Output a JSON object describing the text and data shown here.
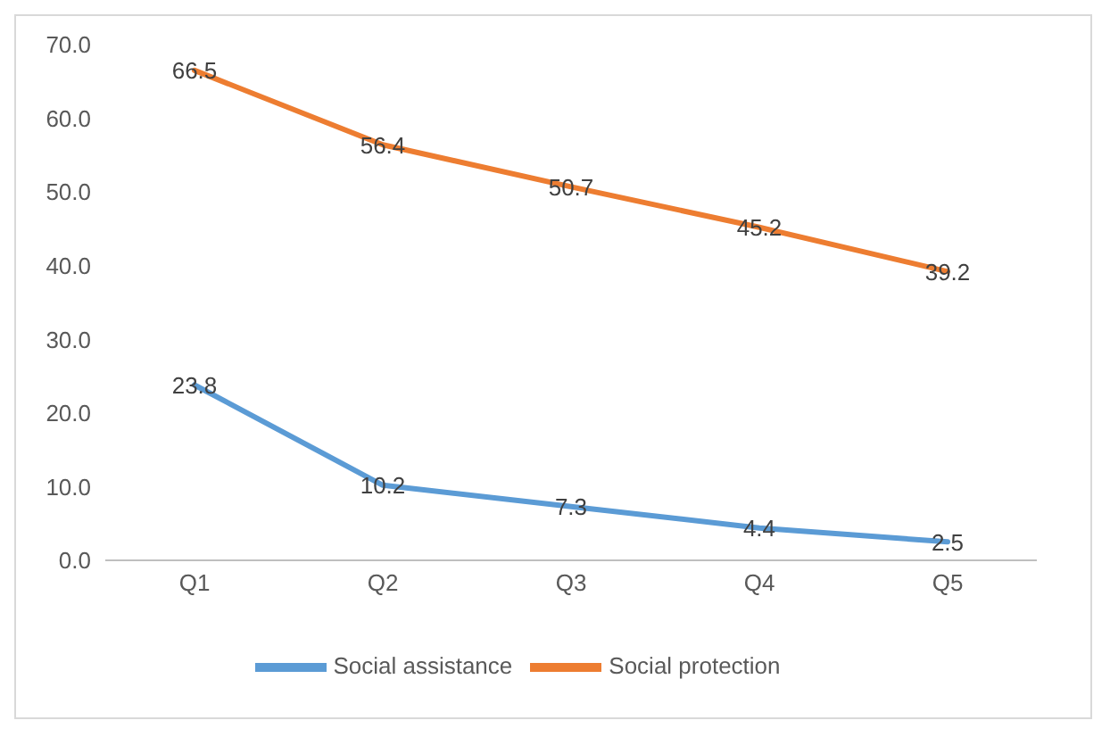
{
  "chart_data": {
    "type": "line",
    "categories": [
      "Q1",
      "Q2",
      "Q3",
      "Q4",
      "Q5"
    ],
    "series": [
      {
        "name": "Social assistance",
        "color": "#5b9bd5",
        "values": [
          23.8,
          10.2,
          7.3,
          4.4,
          2.5
        ]
      },
      {
        "name": "Social protection",
        "color": "#ed7d31",
        "values": [
          66.5,
          56.4,
          50.7,
          45.2,
          39.2
        ]
      }
    ],
    "ylim": [
      0,
      70
    ],
    "yticks": [
      {
        "value": 0,
        "label": "0.0"
      },
      {
        "value": 10,
        "label": "10.0"
      },
      {
        "value": 20,
        "label": "20.0"
      },
      {
        "value": 30,
        "label": "30.0"
      },
      {
        "value": 40,
        "label": "40.0"
      },
      {
        "value": 50,
        "label": "50.0"
      },
      {
        "value": 60,
        "label": "60.0"
      },
      {
        "value": 70,
        "label": "70.0"
      }
    ],
    "data_labels": true,
    "legend": "bottom",
    "marker": "none",
    "line_style": "solid",
    "grid": false
  }
}
